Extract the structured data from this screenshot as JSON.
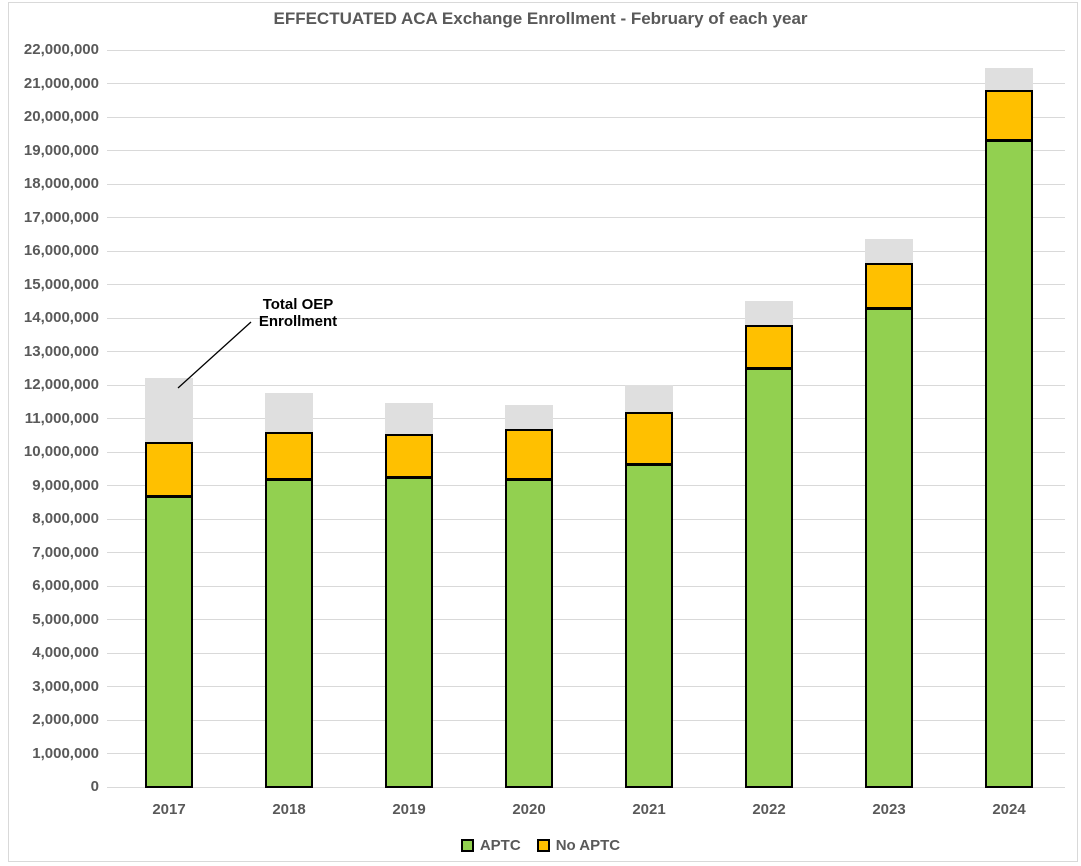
{
  "title": "EFFECTUATED ACA Exchange Enrollment - February of each year",
  "annotation": {
    "line1": "Total OEP",
    "line2": "Enrollment"
  },
  "colors": {
    "aptc_green": "#92D050",
    "no_aptc_yellow": "#FFC000",
    "oep_gray": "#DFDFDF",
    "gridline": "#D9D9D9",
    "axis_text": "#595959",
    "bar_outline": "#000000"
  },
  "legend": {
    "items": [
      {
        "label": "APTC",
        "color": "#92D050"
      },
      {
        "label": "No APTC",
        "color": "#FFC000"
      }
    ]
  },
  "chart_data": {
    "type": "bar",
    "stacked": true,
    "title": "EFFECTUATED ACA Exchange Enrollment - February of each year",
    "categories": [
      "2017",
      "2018",
      "2019",
      "2020",
      "2021",
      "2022",
      "2023",
      "2024"
    ],
    "series": [
      {
        "name": "APTC",
        "color": "#92D050",
        "values": [
          8700000,
          9200000,
          9250000,
          9200000,
          9650000,
          12500000,
          14300000,
          19300000
        ]
      },
      {
        "name": "No APTC",
        "color": "#FFC000",
        "values": [
          1600000,
          1400000,
          1300000,
          1500000,
          1550000,
          1300000,
          1350000,
          1500000
        ]
      },
      {
        "name": "Total OEP Enrollment remainder",
        "color": "#DFDFDF",
        "values": [
          1900000,
          1150000,
          900000,
          700000,
          800000,
          700000,
          700000,
          650000
        ]
      }
    ],
    "effectuated_totals": [
      10300000,
      10600000,
      10550000,
      10700000,
      11200000,
      13800000,
      15650000,
      20800000
    ],
    "oep_totals": [
      12200000,
      11750000,
      11450000,
      11400000,
      12000000,
      14500000,
      16350000,
      21450000
    ],
    "annotation_label": "Total OEP Enrollment",
    "xlabel": "",
    "ylabel": "",
    "ylim": [
      0,
      22000000
    ],
    "y_tick_step": 1000000,
    "y_tick_labels": [
      "0",
      "1,000,000",
      "2,000,000",
      "3,000,000",
      "4,000,000",
      "5,000,000",
      "6,000,000",
      "7,000,000",
      "8,000,000",
      "9,000,000",
      "10,000,000",
      "11,000,000",
      "12,000,000",
      "13,000,000",
      "14,000,000",
      "15,000,000",
      "16,000,000",
      "17,000,000",
      "18,000,000",
      "19,000,000",
      "20,000,000",
      "21,000,000",
      "22,000,000"
    ],
    "grid": true,
    "legend_position": "bottom"
  }
}
